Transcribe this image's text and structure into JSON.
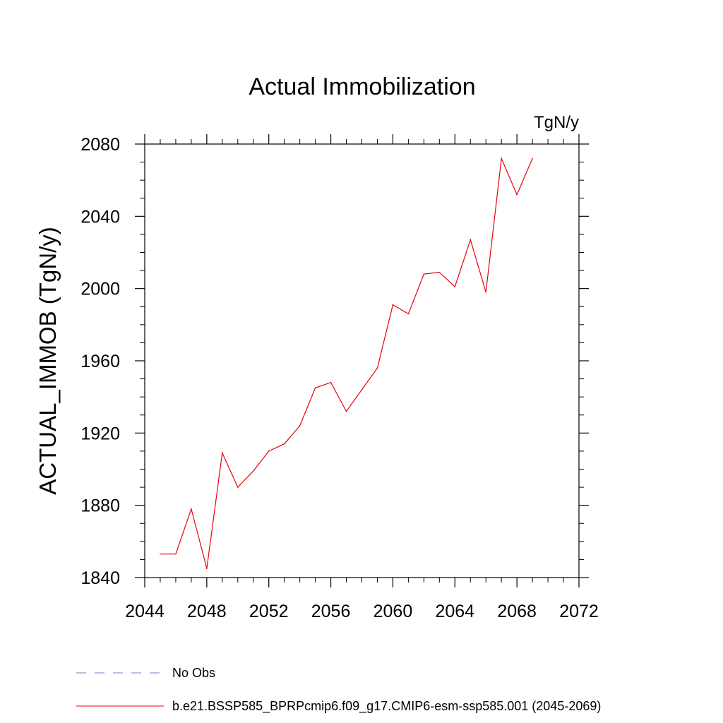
{
  "chart_data": {
    "type": "line",
    "title": "Actual Immobilization",
    "units": "TgN/y",
    "ylabel": "ACTUAL_IMMOB  (TgN/y)",
    "xlabel": "",
    "xlim": [
      2044,
      2072
    ],
    "ylim": [
      1840,
      2080
    ],
    "xticks": [
      "2044",
      "2048",
      "2052",
      "2056",
      "2060",
      "2064",
      "2068",
      "2072"
    ],
    "yticks": [
      "1840",
      "1880",
      "1920",
      "1960",
      "2000",
      "2040",
      "2080"
    ],
    "grid": false,
    "legend_position": "bottom-left",
    "series": [
      {
        "name": "b.e21.BSSP585_BPRPcmip6.f09_g17.CMIP6-esm-ssp585.001 (2045-2069)",
        "color": "#e8000b",
        "style": "solid",
        "x": [
          2045,
          2046,
          2047,
          2048,
          2049,
          2050,
          2051,
          2052,
          2053,
          2054,
          2055,
          2056,
          2057,
          2058,
          2059,
          2060,
          2061,
          2062,
          2063,
          2064,
          2065,
          2066,
          2067,
          2068,
          2069
        ],
        "y": [
          1853,
          1853,
          1878,
          1845,
          1909,
          1890,
          1899,
          1910,
          1914,
          1924,
          1945,
          1948,
          1932,
          1944,
          1956,
          1991,
          1986,
          2008,
          2009,
          2001,
          2027,
          1998,
          2072,
          2052,
          2072
        ]
      }
    ],
    "legend": [
      {
        "label": "No Obs",
        "color": "#7b7bc9",
        "style": "dashed"
      },
      {
        "label": "b.e21.BSSP585_BPRPcmip6.f09_g17.CMIP6-esm-ssp585.001 (2045-2069)",
        "color": "#e8000b",
        "style": "solid"
      }
    ]
  }
}
